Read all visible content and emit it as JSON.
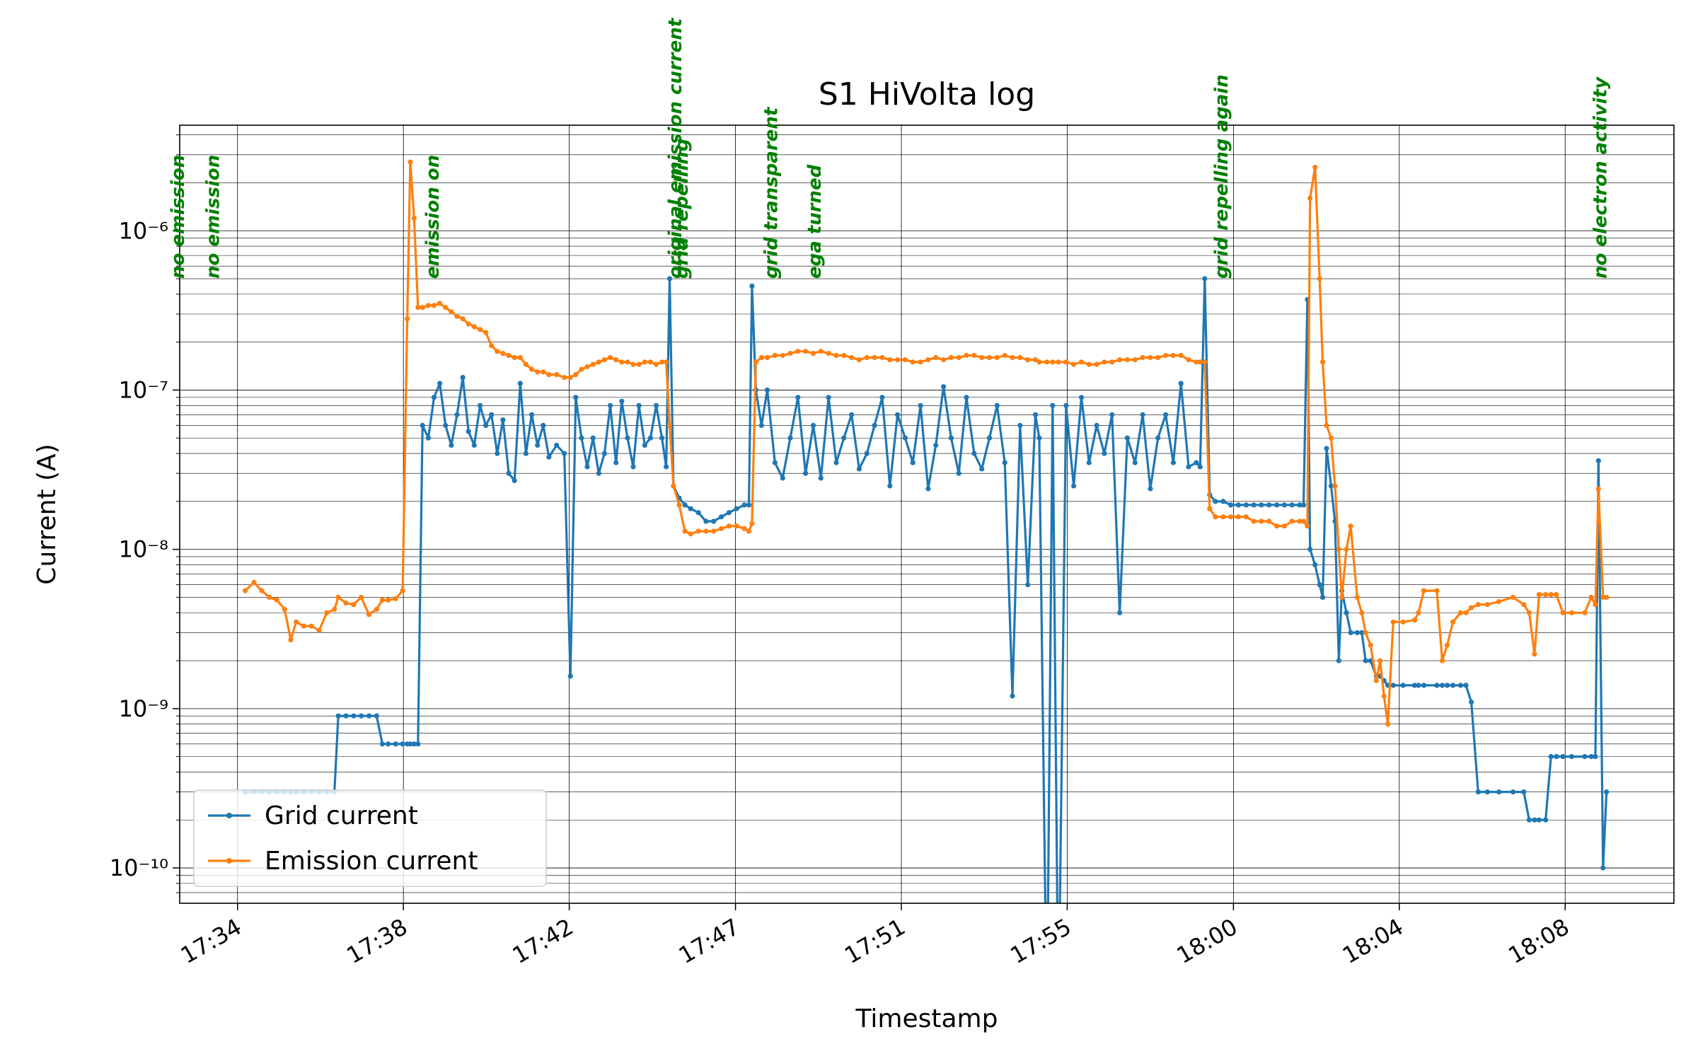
{
  "chart_data": {
    "type": "line",
    "title": "S1 HiVolta log",
    "xlabel": "Timestamp",
    "ylabel": "Current (A)",
    "yscale": "log",
    "grid": true,
    "legend": "lower left",
    "xlim": [
      1052.66,
      1091.67
    ],
    "xticks": [
      {
        "value": 1054.17,
        "label": "17:34"
      },
      {
        "value": 1058.5,
        "label": "17:38"
      },
      {
        "value": 1062.83,
        "label": "17:42"
      },
      {
        "value": 1067.17,
        "label": "17:47"
      },
      {
        "value": 1071.5,
        "label": "17:51"
      },
      {
        "value": 1075.83,
        "label": "17:55"
      },
      {
        "value": 1080.17,
        "label": "18:00"
      },
      {
        "value": 1084.5,
        "label": "18:04"
      },
      {
        "value": 1088.83,
        "label": "18:08"
      }
    ],
    "ylim": [
      6e-11,
      4.6e-06
    ],
    "yticks": [
      {
        "value": 1e-10,
        "label": "10⁻¹⁰"
      },
      {
        "value": 1e-09,
        "label": "10⁻⁹"
      },
      {
        "value": 1e-08,
        "label": "10⁻⁸"
      },
      {
        "value": 1e-07,
        "label": "10⁻⁷"
      },
      {
        "value": 1e-06,
        "label": "10⁻⁶"
      }
    ],
    "minor_yticks": [
      7e-11,
      8e-11,
      9e-11,
      2e-10,
      3e-10,
      4e-10,
      5e-10,
      6e-10,
      7e-10,
      8e-10,
      9e-10,
      2e-09,
      3e-09,
      4e-09,
      5e-09,
      6e-09,
      7e-09,
      8e-09,
      9e-09,
      2e-08,
      3e-08,
      4e-08,
      5e-08,
      6e-08,
      7e-08,
      8e-08,
      9e-08,
      2e-07,
      3e-07,
      4e-07,
      5e-07,
      6e-07,
      7e-07,
      8e-07,
      9e-07,
      2e-06,
      3e-06,
      4e-06
    ],
    "annotation_color": "green",
    "annotations": [
      {
        "text": "no emission",
        "x": 1052.6,
        "y": 5e-07
      },
      {
        "text": "no emission",
        "x": 1053.52,
        "y": 5e-07
      },
      {
        "text": "emission on",
        "x": 1059.25,
        "y": 5e-07
      },
      {
        "text": "original emission current",
        "x": 1065.59,
        "y": 5e-07
      },
      {
        "text": "grid repelling",
        "x": 1065.76,
        "y": 5e-07
      },
      {
        "text": "grid transparent",
        "x": 1068.09,
        "y": 5e-07
      },
      {
        "text": "ega turned",
        "x": 1069.23,
        "y": 5e-07
      },
      {
        "text": "grid repelling again",
        "x": 1079.85,
        "y": 5e-07
      },
      {
        "text": "no electron activity",
        "x": 1089.74,
        "y": 5e-07
      }
    ],
    "x": [
      1054.37,
      1054.6,
      1054.8,
      1055.0,
      1055.2,
      1055.4,
      1055.56,
      1055.7,
      1055.9,
      1056.1,
      1056.3,
      1056.5,
      1056.7,
      1056.8,
      1057.0,
      1057.2,
      1057.4,
      1057.6,
      1057.8,
      1057.95,
      1058.1,
      1058.3,
      1058.48,
      1058.6,
      1058.68,
      1058.78,
      1058.88,
      1059.0,
      1059.15,
      1059.3,
      1059.45,
      1059.6,
      1059.75,
      1059.9,
      1060.05,
      1060.2,
      1060.35,
      1060.5,
      1060.65,
      1060.8,
      1060.95,
      1061.1,
      1061.25,
      1061.4,
      1061.55,
      1061.7,
      1061.85,
      1062.0,
      1062.15,
      1062.3,
      1062.5,
      1062.7,
      1062.86,
      1063.0,
      1063.15,
      1063.3,
      1063.45,
      1063.6,
      1063.75,
      1063.9,
      1064.05,
      1064.2,
      1064.35,
      1064.5,
      1064.65,
      1064.8,
      1064.95,
      1065.1,
      1065.25,
      1065.36,
      1065.45,
      1065.55,
      1065.7,
      1065.85,
      1066.0,
      1066.2,
      1066.4,
      1066.6,
      1066.8,
      1067.0,
      1067.2,
      1067.4,
      1067.52,
      1067.6,
      1067.7,
      1067.85,
      1068.0,
      1068.2,
      1068.4,
      1068.6,
      1068.8,
      1069.0,
      1069.2,
      1069.4,
      1069.6,
      1069.8,
      1070.0,
      1070.2,
      1070.4,
      1070.6,
      1070.8,
      1071.0,
      1071.2,
      1071.4,
      1071.6,
      1071.8,
      1072.0,
      1072.2,
      1072.4,
      1072.6,
      1072.8,
      1073.0,
      1073.2,
      1073.4,
      1073.6,
      1073.8,
      1074.0,
      1074.2,
      1074.4,
      1074.6,
      1074.8,
      1075.0,
      1075.1,
      1075.3,
      1075.45,
      1075.6,
      1075.8,
      1076.0,
      1076.2,
      1076.4,
      1076.6,
      1076.8,
      1077.0,
      1077.2,
      1077.4,
      1077.6,
      1077.8,
      1078.0,
      1078.2,
      1078.4,
      1078.6,
      1078.8,
      1079.0,
      1079.2,
      1079.3,
      1079.42,
      1079.55,
      1079.7,
      1079.9,
      1080.1,
      1080.3,
      1080.5,
      1080.7,
      1080.9,
      1081.1,
      1081.3,
      1081.5,
      1081.7,
      1081.9,
      1082.0,
      1082.1,
      1082.17,
      1082.3,
      1082.42,
      1082.5,
      1082.6,
      1082.72,
      1082.82,
      1082.92,
      1083.0,
      1083.12,
      1083.23,
      1083.4,
      1083.52,
      1083.62,
      1083.75,
      1083.9,
      1084.0,
      1084.1,
      1084.2,
      1084.34,
      1084.6,
      1084.9,
      1085.0,
      1085.14,
      1085.48,
      1085.62,
      1085.75,
      1085.9,
      1086.1,
      1086.24,
      1086.38,
      1086.56,
      1086.8,
      1087.1,
      1087.47,
      1087.75,
      1087.89,
      1088.03,
      1088.15,
      1088.32,
      1088.46,
      1088.6,
      1088.77,
      1089.0,
      1089.34,
      1089.51,
      1089.62,
      1089.7,
      1089.82,
      1089.91
    ],
    "series": [
      {
        "name": "Grid current",
        "color": "#1f77b4",
        "values": [
          3e-10,
          3e-10,
          3e-10,
          3e-10,
          3e-10,
          3e-10,
          3e-10,
          3e-10,
          3e-10,
          3e-10,
          3e-10,
          3e-10,
          3e-10,
          9e-10,
          9e-10,
          9e-10,
          9e-10,
          9e-10,
          9e-10,
          6e-10,
          6e-10,
          6e-10,
          6e-10,
          6e-10,
          6e-10,
          6e-10,
          6e-10,
          6e-08,
          5e-08,
          9e-08,
          1.1e-07,
          6e-08,
          4.5e-08,
          7e-08,
          1.2e-07,
          5.5e-08,
          4.5e-08,
          8e-08,
          6e-08,
          7e-08,
          4e-08,
          6.5e-08,
          3e-08,
          2.7e-08,
          1.1e-07,
          4e-08,
          7e-08,
          4.5e-08,
          6e-08,
          3.8e-08,
          4.5e-08,
          4e-08,
          1.6e-09,
          9e-08,
          5e-08,
          3.3e-08,
          5e-08,
          3e-08,
          4e-08,
          8e-08,
          3.5e-08,
          8.5e-08,
          5e-08,
          3.3e-08,
          8e-08,
          4.5e-08,
          5e-08,
          8e-08,
          5e-08,
          3.3e-08,
          5e-07,
          2.5e-08,
          2.1e-08,
          1.9e-08,
          1.8e-08,
          1.7e-08,
          1.5e-08,
          1.5e-08,
          1.6e-08,
          1.7e-08,
          1.8e-08,
          1.9e-08,
          1.9e-08,
          4.5e-07,
          1e-07,
          6e-08,
          1e-07,
          3.5e-08,
          2.8e-08,
          5e-08,
          9e-08,
          3e-08,
          6e-08,
          2.8e-08,
          9e-08,
          3.5e-08,
          5e-08,
          7e-08,
          3.2e-08,
          4e-08,
          6e-08,
          9e-08,
          2.5e-08,
          7e-08,
          5e-08,
          3.5e-08,
          8e-08,
          2.4e-08,
          4.5e-08,
          1.05e-07,
          5e-08,
          3e-08,
          9e-08,
          4e-08,
          3.2e-08,
          5e-08,
          8e-08,
          3.5e-08,
          1.2e-09,
          6e-08,
          6e-09,
          7e-08,
          5e-08,
          1e-11,
          8e-08,
          1e-11,
          8e-08,
          2.5e-08,
          9e-08,
          3.5e-08,
          6e-08,
          4e-08,
          7e-08,
          4e-09,
          5e-08,
          3.5e-08,
          7e-08,
          2.4e-08,
          5e-08,
          7e-08,
          3.5e-08,
          1.1e-07,
          3.3e-08,
          3.5e-08,
          3.3e-08,
          5e-07,
          2.2e-08,
          2e-08,
          2e-08,
          1.9e-08,
          1.9e-08,
          1.9e-08,
          1.9e-08,
          1.9e-08,
          1.9e-08,
          1.9e-08,
          1.9e-08,
          1.9e-08,
          1.9e-08,
          1.9e-08,
          3.7e-07,
          1e-08,
          8e-09,
          6e-09,
          5e-09,
          4.3e-08,
          2.5e-08,
          1.5e-08,
          2e-09,
          5.5e-09,
          4e-09,
          3e-09,
          3e-09,
          3e-09,
          2e-09,
          2e-09,
          1.6e-09,
          1.6e-09,
          1.5e-09,
          1.4e-09,
          1.4e-09,
          1.4e-09,
          1.4e-09,
          1.4e-09,
          1.4e-09,
          1.4e-09,
          1.4e-09,
          1.4e-09,
          1.4e-09,
          1.4e-09,
          1.4e-09,
          1.1e-09,
          3e-10,
          3e-10,
          3e-10,
          3e-10,
          3e-10,
          2e-10,
          2e-10,
          2e-10,
          2e-10,
          5e-10,
          5e-10,
          5e-10,
          5e-10,
          5e-10,
          5e-10,
          5e-10,
          3.6e-08,
          1e-10,
          3e-10
        ]
      },
      {
        "name": "Emission current",
        "color": "#ff7f0e",
        "values": [
          5.5e-09,
          6.2e-09,
          5.5e-09,
          5e-09,
          4.8e-09,
          4.2e-09,
          2.7e-09,
          3.5e-09,
          3.3e-09,
          3.3e-09,
          3.1e-09,
          4e-09,
          4.2e-09,
          5e-09,
          4.6e-09,
          4.5e-09,
          5e-09,
          3.9e-09,
          4.2e-09,
          4.8e-09,
          4.8e-09,
          4.9e-09,
          5.5e-09,
          2.8e-07,
          2.7e-06,
          1.2e-06,
          3.3e-07,
          3.3e-07,
          3.4e-07,
          3.4e-07,
          3.5e-07,
          3.3e-07,
          3.1e-07,
          2.9e-07,
          2.8e-07,
          2.6e-07,
          2.5e-07,
          2.4e-07,
          2.3e-07,
          1.9e-07,
          1.75e-07,
          1.7e-07,
          1.65e-07,
          1.6e-07,
          1.6e-07,
          1.45e-07,
          1.35e-07,
          1.3e-07,
          1.3e-07,
          1.25e-07,
          1.25e-07,
          1.2e-07,
          1.2e-07,
          1.25e-07,
          1.35e-07,
          1.4e-07,
          1.45e-07,
          1.5e-07,
          1.55e-07,
          1.6e-07,
          1.55e-07,
          1.5e-07,
          1.5e-07,
          1.45e-07,
          1.45e-07,
          1.5e-07,
          1.5e-07,
          1.45e-07,
          1.5e-07,
          1.5e-07,
          6e-08,
          2.5e-08,
          1.9e-08,
          1.3e-08,
          1.25e-08,
          1.3e-08,
          1.3e-08,
          1.3e-08,
          1.35e-08,
          1.4e-08,
          1.4e-08,
          1.35e-08,
          1.3e-08,
          1.45e-08,
          1.5e-07,
          1.6e-07,
          1.6e-07,
          1.65e-07,
          1.65e-07,
          1.7e-07,
          1.75e-07,
          1.75e-07,
          1.7e-07,
          1.75e-07,
          1.7e-07,
          1.65e-07,
          1.65e-07,
          1.6e-07,
          1.55e-07,
          1.6e-07,
          1.6e-07,
          1.6e-07,
          1.55e-07,
          1.55e-07,
          1.55e-07,
          1.5e-07,
          1.5e-07,
          1.55e-07,
          1.6e-07,
          1.55e-07,
          1.6e-07,
          1.6e-07,
          1.65e-07,
          1.65e-07,
          1.6e-07,
          1.6e-07,
          1.6e-07,
          1.65e-07,
          1.6e-07,
          1.6e-07,
          1.55e-07,
          1.55e-07,
          1.5e-07,
          1.5e-07,
          1.5e-07,
          1.5e-07,
          1.5e-07,
          1.45e-07,
          1.5e-07,
          1.45e-07,
          1.45e-07,
          1.5e-07,
          1.5e-07,
          1.55e-07,
          1.55e-07,
          1.55e-07,
          1.6e-07,
          1.6e-07,
          1.6e-07,
          1.65e-07,
          1.65e-07,
          1.65e-07,
          1.55e-07,
          1.5e-07,
          1.5e-07,
          1.5e-07,
          1.8e-08,
          1.6e-08,
          1.6e-08,
          1.6e-08,
          1.6e-08,
          1.6e-08,
          1.5e-08,
          1.5e-08,
          1.5e-08,
          1.4e-08,
          1.4e-08,
          1.5e-08,
          1.5e-08,
          1.5e-08,
          1.4e-08,
          1.6e-06,
          2.5e-06,
          5e-07,
          1.5e-07,
          6e-08,
          5e-08,
          2.5e-08,
          1e-08,
          5e-09,
          1e-08,
          1.4e-08,
          5e-09,
          4e-09,
          3e-09,
          2.5e-09,
          1.5e-09,
          2e-09,
          1.2e-09,
          8e-10,
          3.5e-09,
          3.5e-09,
          3.6e-09,
          4e-09,
          5.5e-09,
          5.5e-09,
          2e-09,
          2.5e-09,
          3.5e-09,
          4e-09,
          4e-09,
          4.3e-09,
          4.5e-09,
          4.5e-09,
          4.7e-09,
          5e-09,
          4.5e-09,
          4e-09,
          2.2e-09,
          5.2e-09,
          5.2e-09,
          5.2e-09,
          5.2e-09,
          4e-09,
          4e-09,
          4e-09,
          5e-09,
          4.5e-09,
          2.4e-08,
          5e-09,
          5e-09
        ]
      }
    ]
  }
}
